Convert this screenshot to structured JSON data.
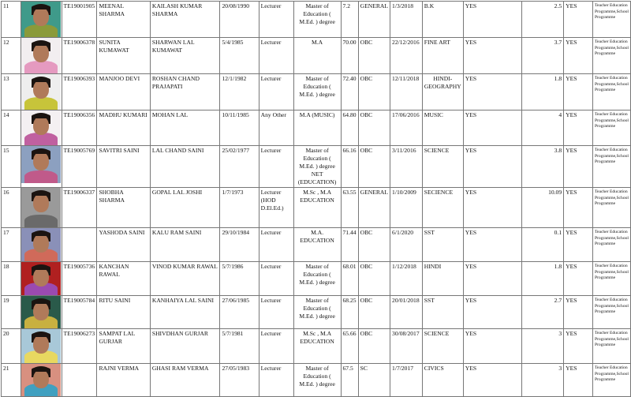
{
  "rows": [
    {
      "sno": "11",
      "id": "TE19001905",
      "name": "MEENAL SHARMA",
      "father": "KAILASH KUMAR SHARMA",
      "dob": "20/08/1990",
      "designation": "Lecturer",
      "qualification": "Master of Education ( M.Ed. ) degree",
      "percent": "7.2",
      "category": "GENERAL",
      "date": "1/3/2018",
      "subject": "B.K",
      "yes1": "YES",
      "experience": "2.5",
      "yes2": "YES",
      "programme": "Teacher Education Programme,School Programme",
      "photo_bg": "#3f9a8a",
      "photo_body": "#8a9a3a"
    },
    {
      "sno": "12",
      "id": "TE19006378",
      "name": "SUNITA KUMAWAT",
      "father": "SHARWAN LAL KUMAWAT",
      "dob": "5/4/1985",
      "designation": "Lecturer",
      "qualification": "M.A",
      "percent": "70.00",
      "category": "OBC",
      "date": "22/12/2016",
      "subject": "FINE ART",
      "yes1": "YES",
      "experience": "3.7",
      "yes2": "YES",
      "programme": "Teacher Education Programme,School Programme",
      "photo_bg": "#f2eef0",
      "photo_body": "#e59ac0"
    },
    {
      "sno": "13",
      "id": "TE19006393",
      "name": "MANJOO DEVI",
      "father": "ROSHAN CHAND PRAJAPATI",
      "dob": "12/1/1982",
      "designation": "Lecturer",
      "qualification": "Master of Education ( M.Ed. ) degree",
      "percent": "72.40",
      "category": "OBC",
      "date": "12/11/2018",
      "subject": "HINDI-GEOGRAPHY",
      "yes1": "YES",
      "experience": "1.8",
      "yes2": "YES",
      "programme": "Teacher Education Programme,School Programme",
      "photo_bg": "#eeeeee",
      "photo_body": "#c7c43a"
    },
    {
      "sno": "14",
      "id": "TE19006356",
      "name": "MADHU KUMARI",
      "father": "MOHAN LAL",
      "dob": "10/11/1985",
      "designation": "Any Other",
      "qualification": "M.A (MUSIC)",
      "percent": "64.80",
      "category": "OBC",
      "date": "17/06/2016",
      "subject": "MUSIC",
      "yes1": "YES",
      "experience": "4",
      "yes2": "YES",
      "programme": "Teacher Education Programme,School Programme",
      "photo_bg": "#f4f0f2",
      "photo_body": "#c060a0"
    },
    {
      "sno": "15",
      "id": "TE19005769",
      "name": "SAVITRI SAINI",
      "father": "LAL CHAND SAINI",
      "dob": "25/02/1977",
      "designation": "Lecturer",
      "qualification": "Master of Education ( M.Ed. ) degree NET (EDUCATION)",
      "percent": "66.16",
      "category": "OBC",
      "date": "3/11/2016",
      "subject": "SCIENCE",
      "yes1": "YES",
      "experience": "3.8",
      "yes2": "YES",
      "programme": "Teacher Education Programme,School Programme",
      "photo_bg": "#8ca0c0",
      "photo_body": "#c05a8a"
    },
    {
      "sno": "16",
      "id": "TE19006337",
      "name": "SHOBHA SHARMA",
      "father": "GOPAL LAL JOSHI",
      "dob": "1/7/1973",
      "designation": "Lecturer (HOD D.El.Ed.)",
      "qualification": "M.Sc , M.A EDUCATION",
      "percent": "63.55",
      "category": "GENERAL",
      "date": "1/10/2009",
      "subject": "SECIENCE",
      "yes1": "YES",
      "experience": "10.09",
      "yes2": "YES",
      "programme": "Teacher Education Programme,School Programme",
      "photo_bg": "#9a9a9a",
      "photo_body": "#6a6a6a"
    },
    {
      "sno": "17",
      "id": "",
      "name": "YASHODA SAINI",
      "father": "KALU RAM SAINI",
      "dob": "29/10/1984",
      "designation": "Lecturer",
      "qualification": "M.A. EDUCATION",
      "percent": "71.44",
      "category": "OBC",
      "date": "6/1/2020",
      "subject": "SST",
      "yes1": "YES",
      "experience": "0.1",
      "yes2": "YES",
      "programme": "Teacher Education Programme,School Programme",
      "photo_bg": "#8a90b8",
      "photo_body": "#d06a5a"
    },
    {
      "sno": "18",
      "id": "TE19005736",
      "name": "KANCHAN RAWAL",
      "father": "VINOD KUMAR RAWAL",
      "dob": "5/7/1986",
      "designation": "Lecturer",
      "qualification": "Master of Education ( M.Ed. ) degree",
      "percent": "68.01",
      "category": "OBC",
      "date": "1/12/2018",
      "subject": "HINDI",
      "yes1": "YES",
      "experience": "1.8",
      "yes2": "YES",
      "programme": "Teacher Education Programme,School Programme",
      "photo_bg": "#b02020",
      "photo_body": "#9a4ab0"
    },
    {
      "sno": "19",
      "id": "TE19005784",
      "name": "RITU SAINI",
      "father": "KANHAIYA LAL SAINI",
      "dob": "27/06/1985",
      "designation": "Lecturer",
      "qualification": "Master of Education ( M.Ed. ) degree",
      "percent": "68.25",
      "category": "OBC",
      "date": "20/01/2018",
      "subject": "SST",
      "yes1": "YES",
      "experience": "2.7",
      "yes2": "YES",
      "programme": "Teacher Education Programme,School Programme",
      "photo_bg": "#2a5a4a",
      "photo_body": "#c8b040"
    },
    {
      "sno": "20",
      "id": "TE19006273",
      "name": "SAMPAT LAL GURJAR",
      "father": "SHIVDHAN GURJAR",
      "dob": "5/7/1981",
      "designation": "Lecturer",
      "qualification": "M.Sc , M.A EDUCATION",
      "percent": "65.66",
      "category": "OBC",
      "date": "30/08/2017",
      "subject": "SCIENCE",
      "yes1": "YES",
      "experience": "3",
      "yes2": "YES",
      "programme": "Teacher Education Programme,School Programme",
      "photo_bg": "#a8c8d8",
      "photo_body": "#e8d860"
    },
    {
      "sno": "21",
      "id": "",
      "name": "RAJNI VERMA",
      "father": "GHASI RAM VERMA",
      "dob": "27/05/1983",
      "designation": "Lecturer",
      "qualification": "Master of Education ( M.Ed. ) degree",
      "percent": "67.5",
      "category": "SC",
      "date": "1/7/2017",
      "subject": "CIVICS",
      "yes1": "YES",
      "experience": "3",
      "yes2": "YES",
      "programme": "Teacher Education Programme,School Programme",
      "photo_bg": "#d89080",
      "photo_body": "#40a0c0"
    }
  ]
}
